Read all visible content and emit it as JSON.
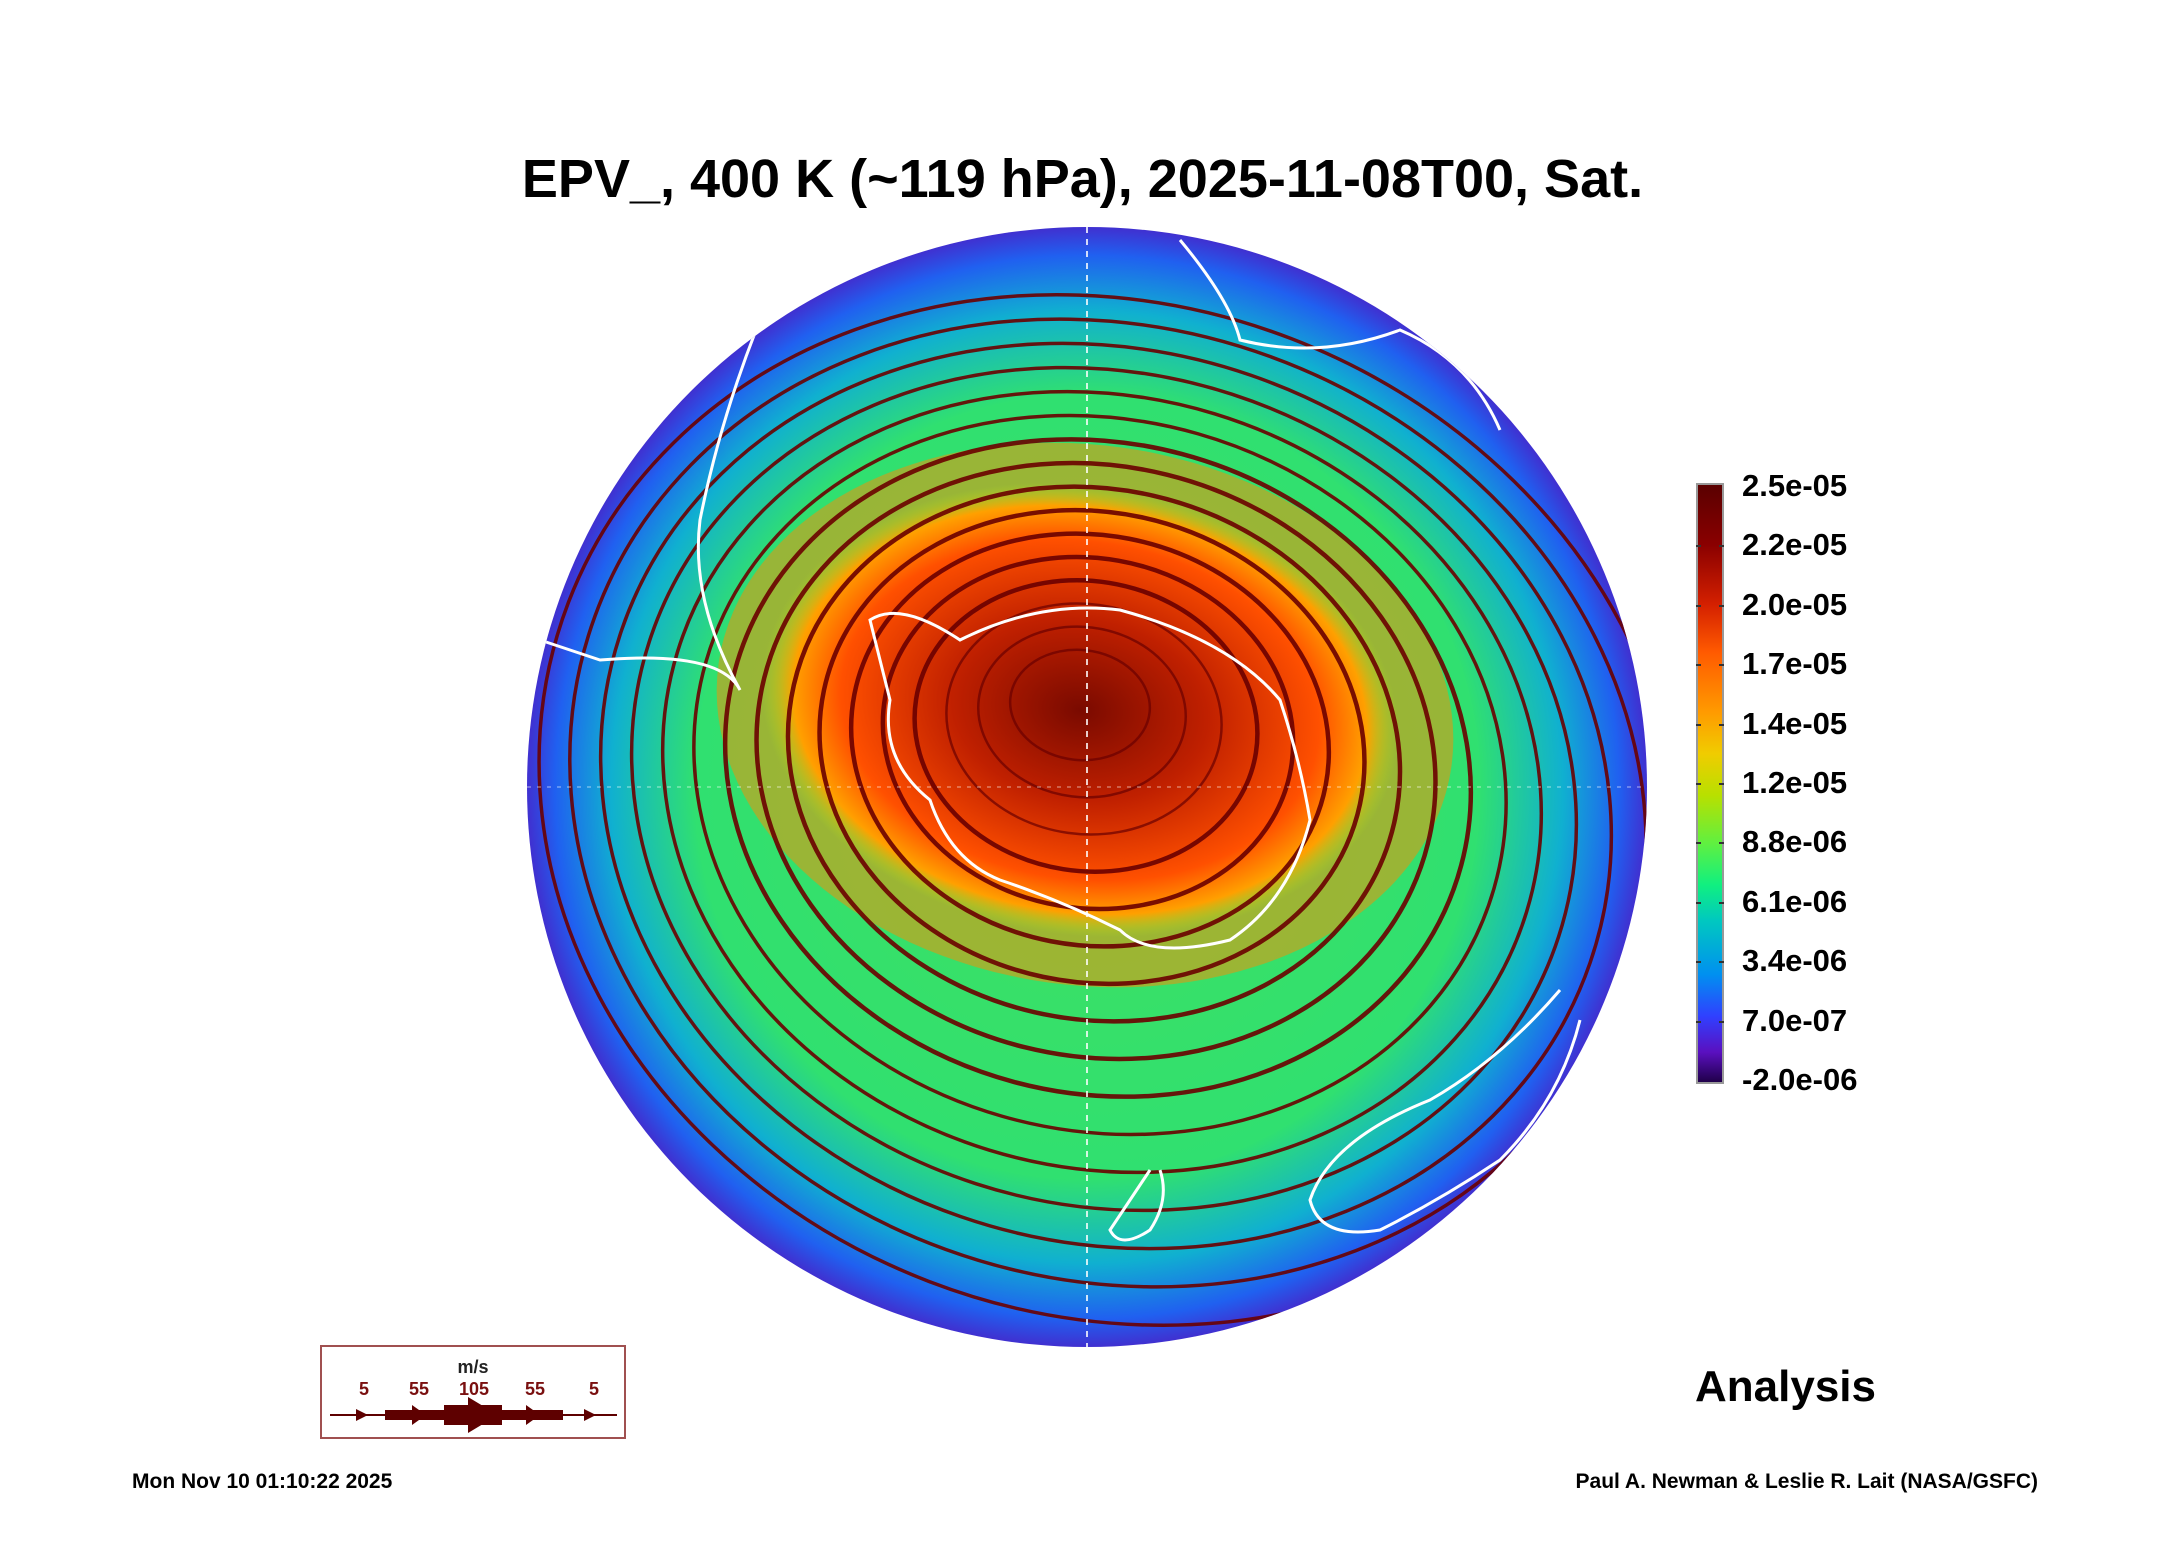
{
  "title": "EPV_, 400 K (~119 hPa), 2025-11-08T00, Sat.",
  "colorbar": {
    "labels": [
      "2.5e-05",
      "2.2e-05",
      "2.0e-05",
      "1.7e-05",
      "1.4e-05",
      "1.2e-05",
      "8.8e-06",
      "6.1e-06",
      "3.4e-06",
      "7.0e-07",
      "-2.0e-06"
    ]
  },
  "legend": {
    "unit": "m/s",
    "values": [
      "5",
      "55",
      "105",
      "55",
      "5"
    ],
    "color": "#5e0000"
  },
  "label_analysis": "Analysis",
  "timestamp": "Mon Nov 10 01:10:22 2025",
  "credit": "Paul A. Newman & Leslie R. Lait (NASA/GSFC)"
}
